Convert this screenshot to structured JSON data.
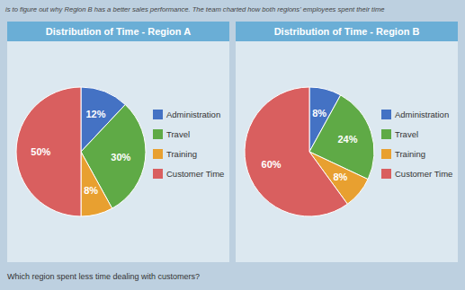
{
  "chart_data": [
    {
      "type": "pie",
      "title": "Distribution of Time - Region A",
      "subtitle": "is to figure out why Region B has a better sales performance. The team charted how both regions' employees spent their time",
      "categories": [
        "Administration",
        "Travel",
        "Training",
        "Customer Time"
      ],
      "values": [
        12,
        30,
        8,
        50
      ],
      "value_labels": [
        "12%",
        "30%",
        "8%",
        "50%"
      ],
      "colors": [
        "#4472c4",
        "#5faa46",
        "#e8a030",
        "#d95f5f"
      ],
      "data_labels": true,
      "legend": "right"
    },
    {
      "type": "pie",
      "title": "Distribution of Time - Region B",
      "annotations": [
        "Which region spent less time dealing with customers?"
      ],
      "categories": [
        "Administration",
        "Travel",
        "Training",
        "Customer Time"
      ],
      "values": [
        8,
        24,
        8,
        60
      ],
      "value_labels": [
        "8%",
        "24%",
        "8%",
        "60%"
      ],
      "colors": [
        "#4472c4",
        "#5faa46",
        "#e8a030",
        "#d95f5f"
      ],
      "data_labels": true,
      "legend": "right"
    }
  ]
}
